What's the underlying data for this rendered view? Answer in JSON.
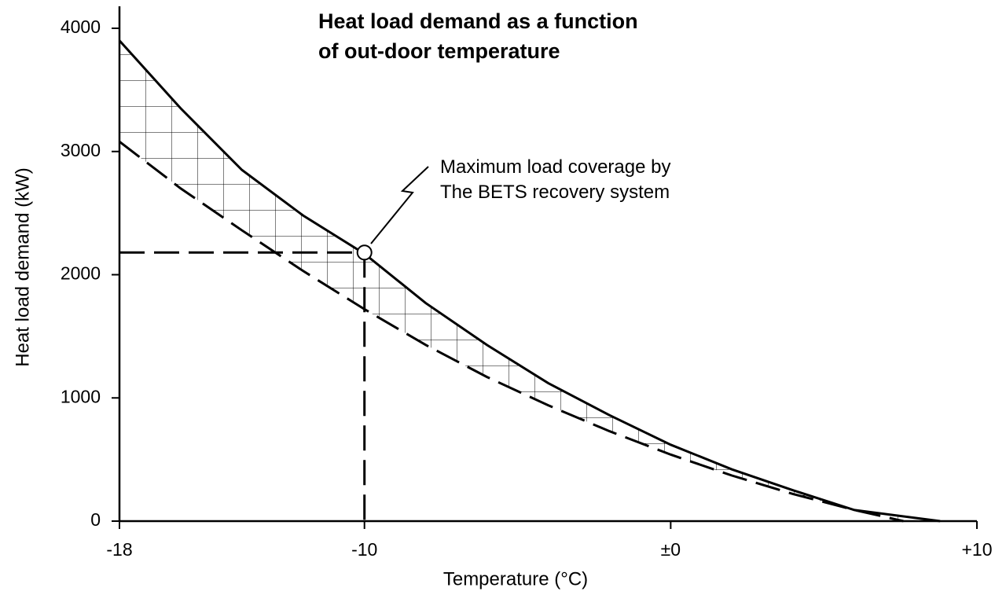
{
  "chart_data": {
    "type": "line",
    "title": [
      "Heat load demand as a function",
      "of out-door temperature"
    ],
    "xlabel": "Temperature (°C)",
    "ylabel": "Heat load demand (kW)",
    "xlim": [
      -18,
      10
    ],
    "ylim": [
      0,
      4000
    ],
    "xticks": [
      -18,
      -10,
      {
        "value": 0,
        "label": "±0"
      },
      {
        "value": 10,
        "label": "+10"
      }
    ],
    "yticks": [
      0,
      1000,
      2000,
      3000,
      4000
    ],
    "color": "#000000",
    "series": [
      {
        "style": "solid",
        "x": [
          -18,
          -16,
          -14,
          -12,
          -10,
          -8,
          -6,
          -4,
          -2,
          0,
          2,
          4,
          6,
          8.8
        ],
        "values": [
          3900,
          3350,
          2850,
          2480,
          2170,
          1770,
          1430,
          1120,
          860,
          620,
          420,
          250,
          90,
          0
        ]
      },
      {
        "style": "dashed",
        "x": [
          -18,
          -16,
          -14,
          -12,
          -10,
          -8,
          -6,
          -4,
          -2,
          0,
          2,
          4,
          6,
          7.6
        ],
        "values": [
          3080,
          2700,
          2360,
          2030,
          1720,
          1430,
          1170,
          940,
          730,
          540,
          370,
          220,
          90,
          0
        ]
      }
    ],
    "marker": {
      "x": -10,
      "y": 2180
    },
    "annotation": [
      "Maximum load coverage by",
      "The BETS recovery system"
    ]
  }
}
